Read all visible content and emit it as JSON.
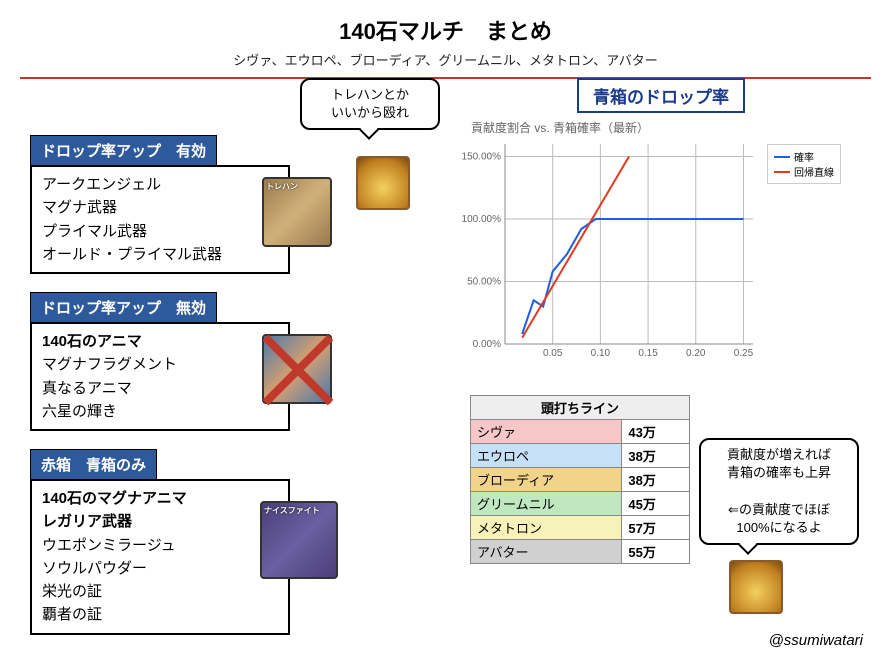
{
  "header": {
    "title": "140石マルチ　まとめ",
    "title_fontsize": 22,
    "subtitle": "シヴァ、エウロペ、ブローディア、グリームニル、メタトロン、アバター"
  },
  "speech1": {
    "line1": "トレハンとか",
    "line2": "いいから殴れ"
  },
  "speech2": {
    "line1": "貢献度が増えれば",
    "line2": "青箱の確率も上昇",
    "line3": "⇐の貢献度でほぼ",
    "line4": "100%になるよ"
  },
  "sections": {
    "droprate_up": {
      "header": "ドロップ率アップ　有効",
      "items": [
        "アークエンジェル",
        "マグナ武器",
        "プライマル武器",
        "オールド・プライマル武器"
      ]
    },
    "droprate_none": {
      "header": "ドロップ率アップ　無効",
      "items_bold": [
        "140石のアニマ"
      ],
      "items": [
        "マグナフラグメント",
        "真なるアニマ",
        "六星の輝き"
      ]
    },
    "box_only": {
      "header": "赤箱　青箱のみ",
      "items_bold": [
        "140石のマグナアニマ",
        "レガリア武器"
      ],
      "items": [
        "ウエポンミラージュ",
        "ソウルパウダー",
        "栄光の証",
        "覇者の証"
      ]
    }
  },
  "char_labels": {
    "c1": "トレハン",
    "c3": "ナイスファイト"
  },
  "chart": {
    "box_title": "青箱のドロップ率",
    "subtitle": "貢献度割合 vs. 青箱確率（最新）",
    "legend": [
      {
        "label": "確率",
        "color": "#1f5fe0"
      },
      {
        "label": "回帰直線",
        "color": "#e03a1f"
      }
    ],
    "x_ticks": [
      "0.05",
      "0.10",
      "0.15",
      "0.20",
      "0.25"
    ],
    "y_ticks": [
      "0.00%",
      "50.00%",
      "100.00%",
      "150.00%"
    ],
    "blue_points": [
      [
        0.018,
        8
      ],
      [
        0.03,
        35
      ],
      [
        0.04,
        30
      ],
      [
        0.05,
        58
      ],
      [
        0.065,
        72
      ],
      [
        0.08,
        92
      ],
      [
        0.095,
        100
      ],
      [
        0.12,
        100
      ],
      [
        0.15,
        100
      ],
      [
        0.2,
        100
      ],
      [
        0.25,
        100
      ]
    ],
    "red_points": [
      [
        0.018,
        5
      ],
      [
        0.13,
        150
      ]
    ],
    "xlim": [
      0.0,
      0.26
    ],
    "ylim": [
      0,
      160
    ],
    "colors": {
      "grid": "#bbbbbb",
      "blue": "#1f5fe0",
      "red": "#e03a1f",
      "bg": "#ffffff"
    }
  },
  "table": {
    "header": "頭打ちライン",
    "rows": [
      {
        "name": "シヴァ",
        "value": "43万",
        "bg": "#f7c6c6"
      },
      {
        "name": "エウロペ",
        "value": "38万",
        "bg": "#c6e0f7"
      },
      {
        "name": "ブローディア",
        "value": "38万",
        "bg": "#f2d38a"
      },
      {
        "name": "グリームニル",
        "value": "45万",
        "bg": "#bfe8c0"
      },
      {
        "name": "メタトロン",
        "value": "57万",
        "bg": "#f7f2b8"
      },
      {
        "name": "アバター",
        "value": "55万",
        "bg": "#d0d0d0"
      }
    ]
  },
  "credit": "@ssumiwatari"
}
